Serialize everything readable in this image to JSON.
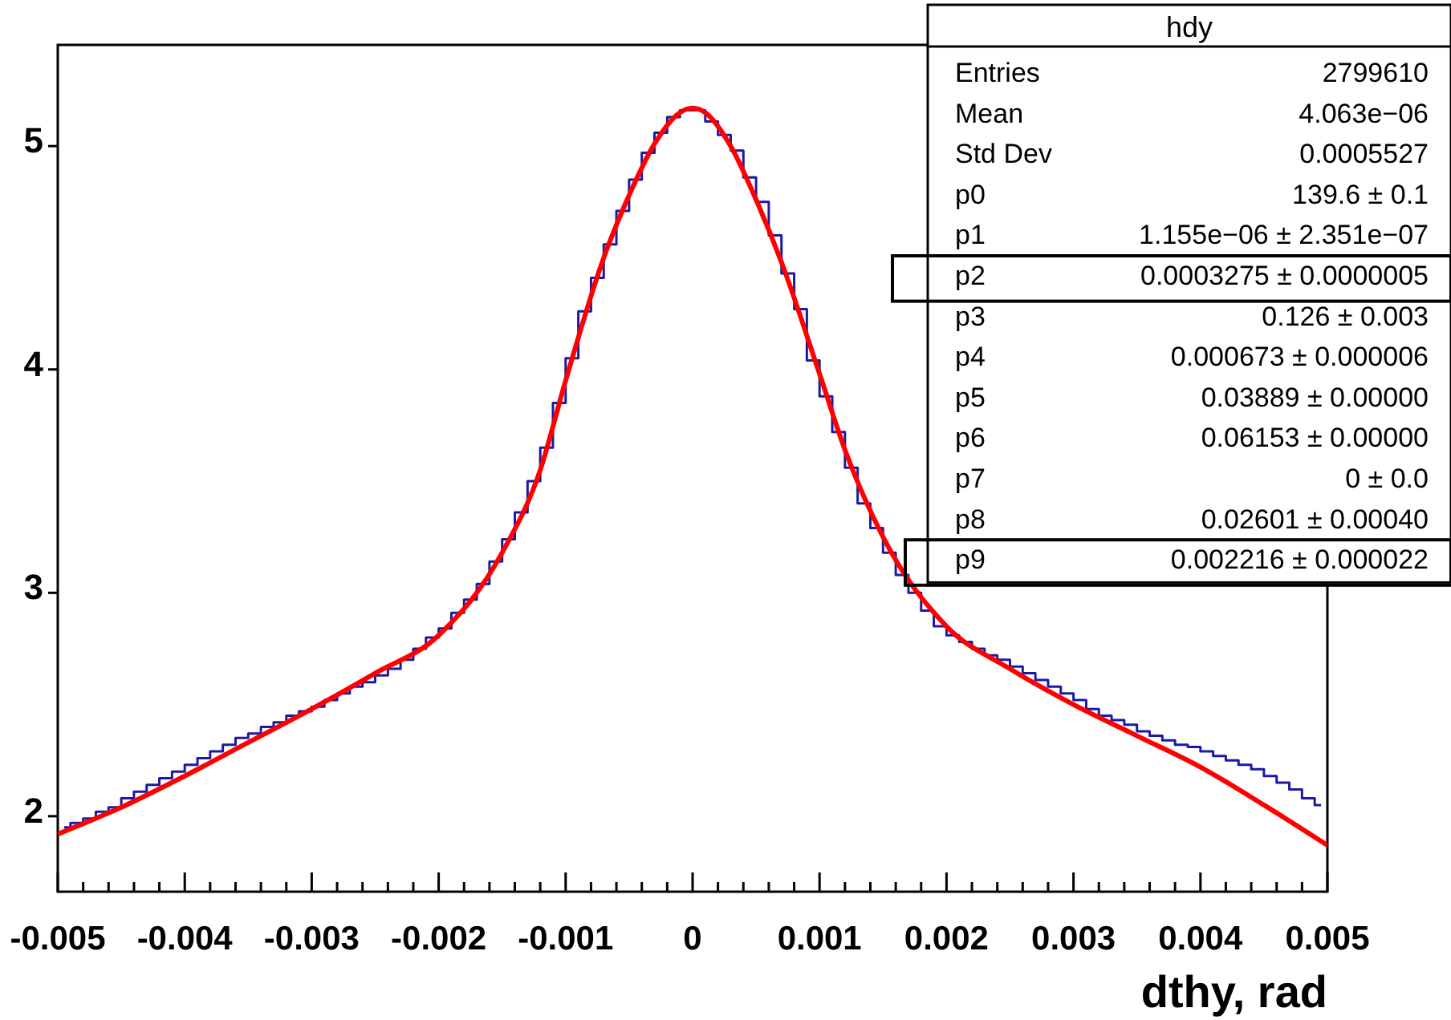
{
  "chart_data": {
    "type": "step",
    "xlabel": "dthy, rad",
    "grid": false,
    "series": [
      {
        "color": "#1a1aa6",
        "x": [
          -0.00495,
          -0.00485,
          -0.00475,
          -0.00465,
          -0.00455,
          -0.00445,
          -0.00435,
          -0.00425,
          -0.00415,
          -0.00405,
          -0.00395,
          -0.00385,
          -0.00375,
          -0.00365,
          -0.00355,
          -0.00345,
          -0.00335,
          -0.00325,
          -0.00315,
          -0.00305,
          -0.00295,
          -0.00285,
          -0.00275,
          -0.00265,
          -0.00255,
          -0.00245,
          -0.00235,
          -0.00225,
          -0.00215,
          -0.00205,
          -0.00195,
          -0.00185,
          -0.00175,
          -0.00165,
          -0.00155,
          -0.00145,
          -0.00135,
          -0.00125,
          -0.00115,
          -0.00105,
          -0.00095,
          -0.00085,
          -0.00075,
          -0.00065,
          -0.00055,
          -0.00045,
          -0.00035,
          -0.00025,
          -0.00015,
          -5e-05,
          5e-05,
          0.00015,
          0.00025,
          0.00035,
          0.00045,
          0.00055,
          0.00065,
          0.00075,
          0.00085,
          0.00095,
          0.00105,
          0.00115,
          0.00125,
          0.00135,
          0.00145,
          0.00155,
          0.00165,
          0.00175,
          0.00185,
          0.00195,
          0.00205,
          0.00215,
          0.00225,
          0.00235,
          0.00245,
          0.00255,
          0.00265,
          0.00275,
          0.00285,
          0.00295,
          0.00305,
          0.00315,
          0.00325,
          0.00335,
          0.00345,
          0.00355,
          0.00365,
          0.00375,
          0.00385,
          0.00395,
          0.00405,
          0.00415,
          0.00425,
          0.00435,
          0.00445,
          0.00455,
          0.00465,
          0.00475,
          0.00485,
          0.00495
        ],
        "values": [
          1.95,
          1.97,
          1.99,
          2.02,
          2.04,
          2.08,
          2.11,
          2.14,
          2.17,
          2.2,
          2.23,
          2.26,
          2.29,
          2.32,
          2.35,
          2.37,
          2.4,
          2.42,
          2.45,
          2.47,
          2.49,
          2.52,
          2.55,
          2.58,
          2.6,
          2.63,
          2.66,
          2.7,
          2.75,
          2.8,
          2.84,
          2.91,
          2.97,
          3.04,
          3.14,
          3.24,
          3.36,
          3.5,
          3.65,
          3.85,
          4.05,
          4.26,
          4.41,
          4.56,
          4.71,
          4.85,
          4.97,
          5.06,
          5.13,
          5.16,
          5.16,
          5.11,
          5.05,
          4.98,
          4.86,
          4.75,
          4.6,
          4.43,
          4.27,
          4.04,
          3.88,
          3.72,
          3.56,
          3.4,
          3.29,
          3.18,
          3.08,
          3.0,
          2.92,
          2.85,
          2.81,
          2.78,
          2.75,
          2.72,
          2.7,
          2.67,
          2.64,
          2.61,
          2.58,
          2.55,
          2.52,
          2.48,
          2.45,
          2.43,
          2.41,
          2.38,
          2.36,
          2.34,
          2.32,
          2.31,
          2.29,
          2.27,
          2.25,
          2.23,
          2.21,
          2.18,
          2.15,
          2.12,
          2.08,
          2.05
        ]
      },
      {
        "type": "line",
        "color": "#ff0000",
        "x": [
          -0.005,
          -0.0045,
          -0.004,
          -0.0035,
          -0.003,
          -0.0025,
          -0.002,
          -0.0015,
          -0.0012,
          -0.001,
          -0.0007,
          -0.0005,
          -0.0003,
          -0.0001,
          0,
          0.0001,
          0.0003,
          0.0005,
          0.0007,
          0.001,
          0.0012,
          0.0015,
          0.002,
          0.0025,
          0.003,
          0.0035,
          0.004,
          0.0045,
          0.005
        ],
        "values": [
          1.92,
          2.04,
          2.18,
          2.33,
          2.48,
          2.64,
          2.81,
          3.18,
          3.55,
          3.95,
          4.5,
          4.78,
          5.01,
          5.15,
          5.17,
          5.15,
          5.0,
          4.76,
          4.48,
          3.98,
          3.64,
          3.25,
          2.85,
          2.66,
          2.5,
          2.36,
          2.22,
          2.05,
          1.87
        ]
      }
    ],
    "xlim": [
      -0.005,
      0.005
    ],
    "xticks": [
      -0.005,
      {
        "value": -0.0048,
        "label": null
      },
      {
        "value": -0.0046,
        "label": null
      },
      {
        "value": -0.0044,
        "label": null
      },
      {
        "value": -0.0042,
        "label": null
      },
      -0.004,
      {
        "value": -0.0038,
        "label": null
      },
      {
        "value": -0.0036,
        "label": null
      },
      {
        "value": -0.0034,
        "label": null
      },
      {
        "value": -0.0032,
        "label": null
      },
      -0.003,
      {
        "value": -0.0028,
        "label": null
      },
      {
        "value": -0.0026,
        "label": null
      },
      {
        "value": -0.0024,
        "label": null
      },
      {
        "value": -0.0022,
        "label": null
      },
      -0.002,
      {
        "value": -0.0018,
        "label": null
      },
      {
        "value": -0.0016,
        "label": null
      },
      {
        "value": -0.0014,
        "label": null
      },
      {
        "value": -0.0012,
        "label": null
      },
      -0.001,
      {
        "value": -0.0008,
        "label": null
      },
      {
        "value": -0.0006,
        "label": null
      },
      {
        "value": -0.0004,
        "label": null
      },
      {
        "value": -0.0002,
        "label": null
      },
      0,
      {
        "value": 0.0002,
        "label": null
      },
      {
        "value": 0.0004,
        "label": null
      },
      {
        "value": 0.0006,
        "label": null
      },
      {
        "value": 0.0008,
        "label": null
      },
      0.001,
      {
        "value": 0.0012,
        "label": null
      },
      {
        "value": 0.0014,
        "label": null
      },
      {
        "value": 0.0016,
        "label": null
      },
      {
        "value": 0.0018,
        "label": null
      },
      0.002,
      {
        "value": 0.0022,
        "label": null
      },
      {
        "value": 0.0024,
        "label": null
      },
      {
        "value": 0.0026,
        "label": null
      },
      {
        "value": 0.0028,
        "label": null
      },
      0.003,
      {
        "value": 0.0032,
        "label": null
      },
      {
        "value": 0.0034,
        "label": null
      },
      {
        "value": 0.0036,
        "label": null
      },
      {
        "value": 0.0038,
        "label": null
      },
      0.004,
      {
        "value": 0.0042,
        "label": null
      },
      {
        "value": 0.0044,
        "label": null
      },
      {
        "value": 0.0046,
        "label": null
      },
      {
        "value": 0.0048,
        "label": null
      },
      0.005
    ],
    "ylim": [
      1.662,
      5.453
    ],
    "yticks": [
      2,
      3,
      4,
      5
    ],
    "annotations": [
      "hdy",
      "Entries",
      "2799610",
      "Mean",
      "4.063e−06",
      "Std Dev",
      "0.0005527",
      "p0",
      "139.6 ± 0.1",
      "p1",
      "1.155e−06 ± 2.351e−07",
      "p2",
      "0.0003275 ± 0.0000005",
      "p3",
      "0.126 ± 0.003",
      "p4",
      "0.000673 ± 0.000006",
      "p5",
      "0.03889 ± 0.00000",
      "p6",
      "0.06153 ± 0.00000",
      "p7",
      "0 ± 0.0",
      "p8",
      "0.02601 ± 0.00040",
      "p9",
      "0.002216 ± 0.000022"
    ]
  }
}
